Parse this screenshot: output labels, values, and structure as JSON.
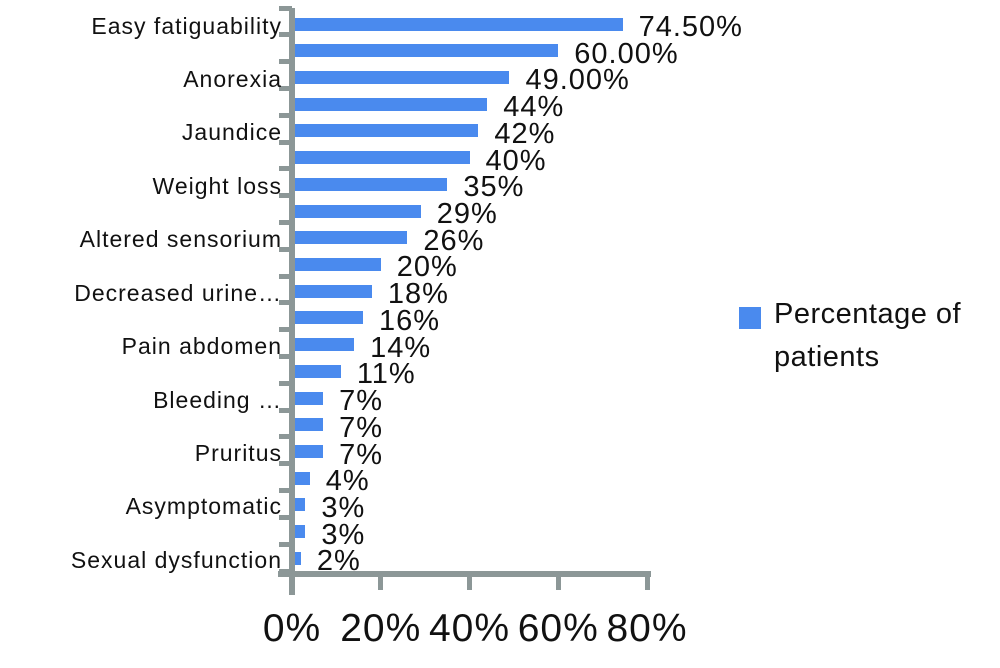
{
  "chart_data": {
    "type": "bar",
    "orientation": "horizontal",
    "title": "",
    "xlabel": "",
    "ylabel": "",
    "xlim": [
      0,
      80
    ],
    "grid": false,
    "x_tick_labels": [
      "0%",
      "20%",
      "40%",
      "60%",
      "80%"
    ],
    "x_tick_values": [
      0,
      20,
      40,
      60,
      80
    ],
    "legend_entries": [
      "Percentage of patients"
    ],
    "legend_position": "right-middle",
    "bar_color": "#4a8aee",
    "axis_color": "#8c9797",
    "categories": [
      "Easy fatiguability",
      "",
      "Anorexia",
      "",
      "Jaundice",
      "",
      "Weight loss",
      "",
      "Altered sensorium",
      "",
      "Decreased urine…",
      "",
      "Pain abdomen",
      "",
      "Bleeding …",
      "",
      "Pruritus",
      "",
      "Asymptomatic",
      "",
      "Sexual dysfunction"
    ],
    "values": [
      74.5,
      60,
      49,
      44,
      42,
      40,
      35,
      29,
      26,
      20,
      18,
      16,
      14,
      11,
      7,
      7,
      7,
      4,
      3,
      3,
      2
    ],
    "data_labels": [
      "74.50%",
      "60.00%",
      "49.00%",
      "44%",
      "42%",
      "40%",
      "35%",
      "29%",
      "26%",
      "20%",
      "18%",
      "16%",
      "14%",
      "11%",
      "7%",
      "7%",
      "7%",
      "4%",
      "3%",
      "3%",
      "2%"
    ]
  }
}
